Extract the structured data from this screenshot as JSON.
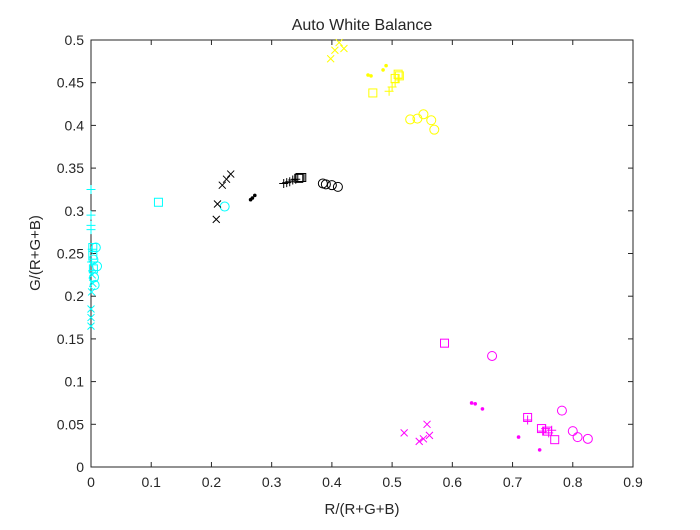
{
  "chart_data": {
    "type": "scatter",
    "title": "Auto White Balance",
    "xlabel": "R/(R+G+B)",
    "ylabel": "G/(R+G+B)",
    "xlim": [
      0,
      0.9
    ],
    "ylim": [
      0,
      0.5
    ],
    "xticks": [
      0,
      0.1,
      0.2,
      0.3,
      0.4,
      0.5,
      0.6,
      0.7,
      0.8,
      0.9
    ],
    "xtick_labels": [
      "0",
      "0.1",
      "0.2",
      "0.3",
      "0.4",
      "0.5",
      "0.6",
      "0.7",
      "0.8",
      "0.9"
    ],
    "yticks": [
      0,
      0.05,
      0.1,
      0.15,
      0.2,
      0.25,
      0.3,
      0.35,
      0.4,
      0.45,
      0.5
    ],
    "ytick_labels": [
      "0",
      "0.05",
      "0.1",
      "0.15",
      "0.2",
      "0.25",
      "0.3",
      "0.35",
      "0.4",
      "0.45",
      "0.5"
    ],
    "grid": false,
    "legend": "none",
    "series": [
      {
        "color": "#00ffff",
        "marker": "x",
        "points": [
          [
            0.0,
            0.165
          ],
          [
            0.0,
            0.175
          ],
          [
            0.0,
            0.185
          ],
          [
            0.001,
            0.205
          ],
          [
            0.002,
            0.225
          ],
          [
            0.003,
            0.215
          ]
        ]
      },
      {
        "color": "#00ffff",
        "marker": "+",
        "points": [
          [
            0.0,
            0.325
          ],
          [
            0.0,
            0.295
          ],
          [
            0.0,
            0.283
          ],
          [
            0.0,
            0.278
          ],
          [
            0.001,
            0.24
          ],
          [
            0.002,
            0.255
          ],
          [
            0.003,
            0.23
          ]
        ]
      },
      {
        "color": "#00ffff",
        "marker": "square",
        "points": [
          [
            0.112,
            0.31
          ],
          [
            0.003,
            0.257
          ],
          [
            0.003,
            0.248
          ],
          [
            0.004,
            0.232
          ]
        ]
      },
      {
        "color": "#00ffff",
        "marker": "circle",
        "points": [
          [
            0.222,
            0.305
          ],
          [
            0.008,
            0.257
          ],
          [
            0.01,
            0.235
          ],
          [
            0.005,
            0.222
          ],
          [
            0.006,
            0.213
          ],
          [
            0.004,
            0.243
          ]
        ]
      },
      {
        "color": "#000000",
        "marker": "x",
        "points": [
          [
            0.208,
            0.29
          ],
          [
            0.21,
            0.308
          ],
          [
            0.218,
            0.33
          ],
          [
            0.225,
            0.337
          ],
          [
            0.232,
            0.343
          ]
        ]
      },
      {
        "color": "#000000",
        "marker": "dot",
        "points": [
          [
            0.265,
            0.313
          ],
          [
            0.268,
            0.315
          ],
          [
            0.272,
            0.318
          ]
        ]
      },
      {
        "color": "#000000",
        "marker": "+",
        "points": [
          [
            0.32,
            0.332
          ],
          [
            0.325,
            0.333
          ],
          [
            0.33,
            0.334
          ],
          [
            0.335,
            0.336
          ],
          [
            0.34,
            0.337
          ]
        ]
      },
      {
        "color": "#000000",
        "marker": "square",
        "points": [
          [
            0.345,
            0.338
          ],
          [
            0.347,
            0.339
          ],
          [
            0.35,
            0.339
          ]
        ]
      },
      {
        "color": "#000000",
        "marker": "circle",
        "points": [
          [
            0.385,
            0.332
          ],
          [
            0.39,
            0.331
          ],
          [
            0.4,
            0.33
          ],
          [
            0.41,
            0.328
          ]
        ]
      },
      {
        "color": "#ffff00",
        "marker": "x",
        "points": [
          [
            0.398,
            0.478
          ],
          [
            0.405,
            0.488
          ],
          [
            0.412,
            0.497
          ],
          [
            0.42,
            0.49
          ]
        ]
      },
      {
        "color": "#ffff00",
        "marker": "dot",
        "points": [
          [
            0.46,
            0.459
          ],
          [
            0.465,
            0.458
          ],
          [
            0.485,
            0.465
          ],
          [
            0.49,
            0.47
          ]
        ]
      },
      {
        "color": "#ffff00",
        "marker": "+",
        "points": [
          [
            0.495,
            0.44
          ],
          [
            0.5,
            0.445
          ],
          [
            0.505,
            0.45
          ],
          [
            0.51,
            0.455
          ]
        ]
      },
      {
        "color": "#ffff00",
        "marker": "square",
        "points": [
          [
            0.468,
            0.438
          ],
          [
            0.505,
            0.455
          ],
          [
            0.51,
            0.46
          ],
          [
            0.512,
            0.458
          ]
        ]
      },
      {
        "color": "#ffff00",
        "marker": "circle",
        "points": [
          [
            0.53,
            0.407
          ],
          [
            0.542,
            0.408
          ],
          [
            0.552,
            0.413
          ],
          [
            0.565,
            0.406
          ],
          [
            0.57,
            0.395
          ]
        ]
      },
      {
        "color": "#ff00ff",
        "marker": "x",
        "points": [
          [
            0.52,
            0.04
          ],
          [
            0.545,
            0.03
          ],
          [
            0.552,
            0.033
          ],
          [
            0.558,
            0.05
          ],
          [
            0.562,
            0.037
          ]
        ]
      },
      {
        "color": "#ff00ff",
        "marker": "dot",
        "points": [
          [
            0.632,
            0.075
          ],
          [
            0.638,
            0.074
          ],
          [
            0.65,
            0.068
          ],
          [
            0.71,
            0.035
          ],
          [
            0.745,
            0.02
          ]
        ]
      },
      {
        "color": "#ff00ff",
        "marker": "+",
        "points": [
          [
            0.725,
            0.055
          ],
          [
            0.75,
            0.042
          ],
          [
            0.755,
            0.045
          ],
          [
            0.76,
            0.04
          ],
          [
            0.765,
            0.043
          ]
        ]
      },
      {
        "color": "#ff00ff",
        "marker": "square",
        "points": [
          [
            0.587,
            0.145
          ],
          [
            0.725,
            0.058
          ],
          [
            0.748,
            0.045
          ],
          [
            0.758,
            0.042
          ],
          [
            0.77,
            0.032
          ]
        ]
      },
      {
        "color": "#ff00ff",
        "marker": "circle",
        "points": [
          [
            0.666,
            0.13
          ],
          [
            0.782,
            0.066
          ],
          [
            0.8,
            0.042
          ],
          [
            0.808,
            0.035
          ],
          [
            0.825,
            0.033
          ]
        ]
      }
    ]
  }
}
